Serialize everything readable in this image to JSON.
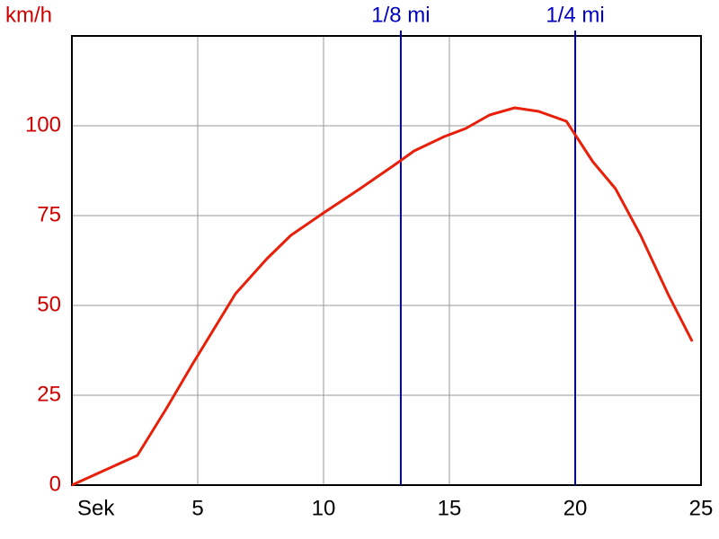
{
  "chart_data": {
    "type": "line",
    "y_label": "km/h",
    "x_label": "Sek",
    "x": [
      0,
      2.6,
      3.75,
      4.8,
      6.5,
      7.75,
      8.7,
      10,
      11.4,
      12.85,
      13.6,
      14.8,
      15.65,
      16.6,
      17.6,
      18.55,
      19.65,
      20.7,
      21.6,
      22.6,
      23.7,
      24.65
    ],
    "series": [
      {
        "color": "#e8200a",
        "values": [
          0,
          8.25,
          21.25,
          33.75,
          53.25,
          63,
          69.5,
          75.75,
          82.25,
          89.25,
          93,
          97,
          99.25,
          103,
          105,
          104,
          101.25,
          90,
          82.5,
          69.5,
          53,
          40
        ]
      }
    ],
    "markers": [
      {
        "label": "1/8 mi",
        "x": 13.07
      },
      {
        "label": "1/4 mi",
        "x": 20
      }
    ],
    "marker_color": "#0000c0",
    "tick_color": "#d00000",
    "xlim": [
      0,
      25
    ],
    "ylim": [
      0,
      125
    ],
    "xticks": [
      5,
      10,
      15,
      20,
      25
    ],
    "yticks": [
      0,
      25,
      50,
      75,
      100
    ],
    "grid": true
  }
}
